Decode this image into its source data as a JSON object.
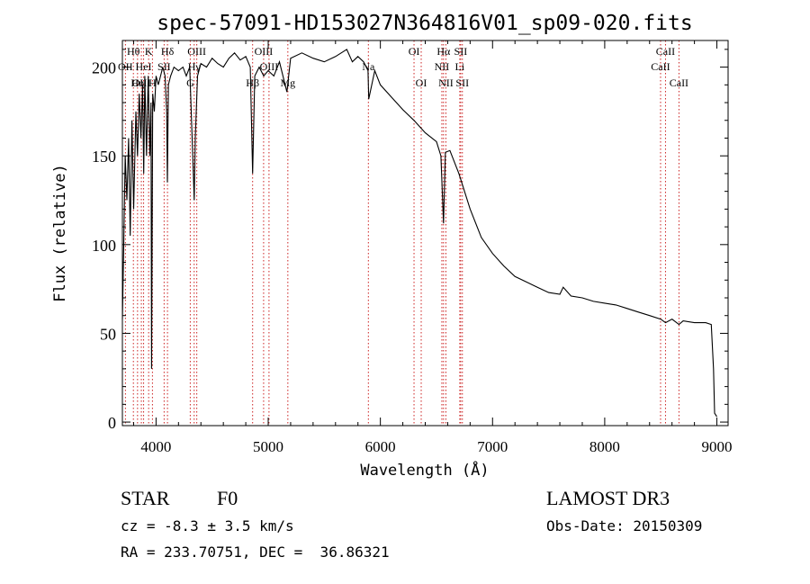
{
  "chart_data": {
    "type": "line",
    "title": "spec-57091-HD153027N364816V01_sp09-020.fits",
    "xlabel": "Wavelength (Å)",
    "ylabel": "Flux (relative)",
    "xlim": [
      3700,
      9100
    ],
    "ylim": [
      -2,
      215
    ],
    "xticks": [
      4000,
      5000,
      6000,
      7000,
      8000,
      9000
    ],
    "yticks": [
      0,
      50,
      100,
      150,
      200
    ],
    "grid": false,
    "series": [
      {
        "name": "flux",
        "x": [
          3700,
          3712,
          3725,
          3740,
          3755,
          3770,
          3785,
          3800,
          3820,
          3835,
          3850,
          3865,
          3880,
          3890,
          3900,
          3915,
          3930,
          3945,
          3955,
          3960,
          3970,
          3985,
          4000,
          4020,
          4040,
          4060,
          4080,
          4095,
          4101,
          4110,
          4130,
          4160,
          4200,
          4240,
          4270,
          4300,
          4330,
          4340,
          4350,
          4370,
          4400,
          4450,
          4500,
          4550,
          4600,
          4650,
          4700,
          4750,
          4800,
          4840,
          4861,
          4880,
          4920,
          4960,
          5000,
          5050,
          5100,
          5167,
          5200,
          5300,
          5400,
          5500,
          5600,
          5700,
          5750,
          5800,
          5850,
          5890,
          5896,
          5950,
          6000,
          6100,
          6200,
          6300,
          6400,
          6500,
          6540,
          6563,
          6580,
          6620,
          6700,
          6800,
          6900,
          7000,
          7100,
          7200,
          7300,
          7400,
          7500,
          7600,
          7630,
          7700,
          7800,
          7900,
          8000,
          8100,
          8200,
          8300,
          8400,
          8500,
          8542,
          8600,
          8662,
          8700,
          8800,
          8900,
          8950,
          8970,
          8980,
          9000
        ],
        "y": [
          58,
          100,
          150,
          125,
          160,
          105,
          170,
          120,
          175,
          150,
          185,
          160,
          190,
          140,
          195,
          150,
          195,
          150,
          180,
          30,
          185,
          175,
          195,
          190,
          195,
          200,
          195,
          175,
          135,
          190,
          195,
          200,
          198,
          200,
          195,
          200,
          145,
          125,
          160,
          195,
          202,
          200,
          205,
          202,
          200,
          205,
          208,
          204,
          206,
          200,
          140,
          195,
          200,
          195,
          198,
          195,
          203,
          186,
          205,
          208,
          205,
          203,
          206,
          210,
          203,
          206,
          203,
          198,
          182,
          198,
          190,
          183,
          176,
          170,
          163,
          158,
          150,
          112,
          152,
          153,
          140,
          120,
          104,
          95,
          88,
          82,
          79,
          76,
          73,
          72,
          76,
          71,
          70,
          68,
          67,
          66,
          64,
          62,
          60,
          58,
          56,
          58,
          55,
          57,
          56,
          56,
          55,
          30,
          5,
          3
        ]
      }
    ],
    "line_markers": [
      {
        "label": "Hθ",
        "x": 3798,
        "row": 1
      },
      {
        "label": "OII",
        "x": 3727,
        "row": 2
      },
      {
        "label": "OIII",
        "x": 3869,
        "row": 3
      },
      {
        "label": "HeI",
        "x": 3889,
        "row": 2
      },
      {
        "label": "Hη",
        "x": 3835,
        "row": 3
      },
      {
        "label": "K",
        "x": 3934,
        "row": 1
      },
      {
        "label": "H",
        "x": 3968,
        "row": 3
      },
      {
        "label": "SII",
        "x": 4072,
        "row": 2
      },
      {
        "label": "Hδ",
        "x": 4102,
        "row": 1
      },
      {
        "label": "OIII",
        "x": 4363,
        "row": 1
      },
      {
        "label": "Hγ",
        "x": 4340,
        "row": 2
      },
      {
        "label": "G",
        "x": 4305,
        "row": 3
      },
      {
        "label": "OIII",
        "x": 4959,
        "row": 1
      },
      {
        "label": "OIII",
        "x": 5007,
        "row": 2
      },
      {
        "label": "Hβ",
        "x": 4861,
        "row": 3
      },
      {
        "label": "Mg",
        "x": 5175,
        "row": 3
      },
      {
        "label": "Na",
        "x": 5893,
        "row": 2
      },
      {
        "label": "OI",
        "x": 6300,
        "row": 1
      },
      {
        "label": "OI",
        "x": 6364,
        "row": 3
      },
      {
        "label": "Hα",
        "x": 6563,
        "row": 1
      },
      {
        "label": "SII",
        "x": 6716,
        "row": 1
      },
      {
        "label": "NII",
        "x": 6548,
        "row": 2
      },
      {
        "label": "Li",
        "x": 6708,
        "row": 2
      },
      {
        "label": "NII",
        "x": 6584,
        "row": 3
      },
      {
        "label": "SII",
        "x": 6731,
        "row": 3
      },
      {
        "label": "CaII",
        "x": 8542,
        "row": 1
      },
      {
        "label": "CaII",
        "x": 8498,
        "row": 2
      },
      {
        "label": "CaII",
        "x": 8662,
        "row": 3
      }
    ]
  },
  "info": {
    "obj_class": "STAR",
    "subclass": "F0",
    "survey": "LAMOST DR3",
    "redshift": "cz = -8.3 ± 3.5 km/s",
    "obs_date": "Obs-Date: 20150309",
    "coords": "RA = 233.70751, DEC =  36.86321"
  },
  "colors": {
    "line": "#000000",
    "marker": "#cc2222",
    "axes": "#000000"
  }
}
